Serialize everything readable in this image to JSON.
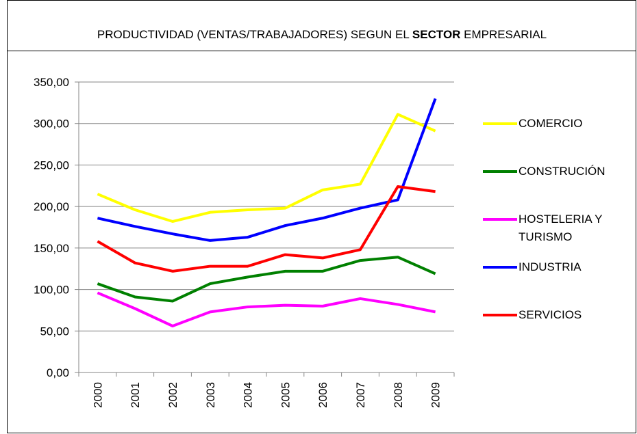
{
  "chart_data": {
    "type": "line",
    "title_parts": [
      "PRODUCTIVIDAD (VENTAS/TRABAJADORES) SEGUN EL ",
      "SECTOR",
      " EMPRESARIAL"
    ],
    "categories": [
      "2000",
      "2001",
      "2002",
      "2003",
      "2004",
      "2005",
      "2006",
      "2007",
      "2008",
      "2009"
    ],
    "series": [
      {
        "name": "COMERCIO",
        "color": "#ffff00",
        "values": [
          215,
          196,
          182,
          193,
          196,
          198,
          220,
          227,
          311,
          291
        ]
      },
      {
        "name": "CONSTRUCIÓN",
        "color": "#008000",
        "values": [
          107,
          91,
          86,
          107,
          115,
          122,
          122,
          135,
          139,
          119
        ]
      },
      {
        "name": "HOSTELERIA Y TURISMO",
        "color": "#ff00ff",
        "values": [
          96,
          77,
          56,
          73,
          79,
          81,
          80,
          89,
          82,
          73
        ]
      },
      {
        "name": "INDUSTRIA",
        "color": "#0000ff",
        "values": [
          186,
          176,
          167,
          159,
          163,
          177,
          186,
          198,
          208,
          330
        ]
      },
      {
        "name": "SERVICIOS",
        "color": "#ff0000",
        "values": [
          158,
          132,
          122,
          128,
          128,
          142,
          138,
          148,
          224,
          218
        ]
      }
    ],
    "ylim": [
      0,
      350
    ],
    "yticks": [
      {
        "value": 0,
        "label": "0,00"
      },
      {
        "value": 50,
        "label": "50,00"
      },
      {
        "value": 100,
        "label": "100,00"
      },
      {
        "value": 150,
        "label": "150,00"
      },
      {
        "value": 200,
        "label": "200,00"
      },
      {
        "value": 250,
        "label": "250,00"
      },
      {
        "value": 300,
        "label": "300,00"
      },
      {
        "value": 350,
        "label": "350,00"
      }
    ],
    "grid": true,
    "legend": "right"
  }
}
